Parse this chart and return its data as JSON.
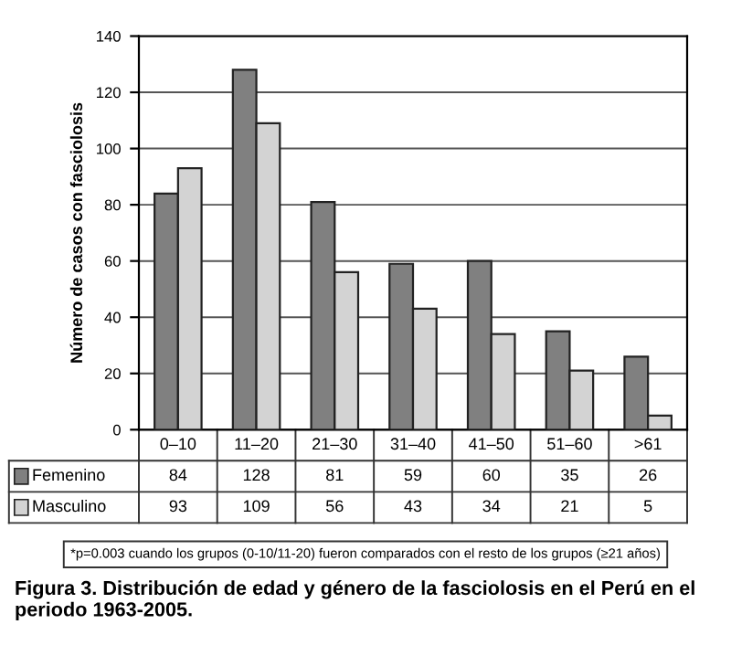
{
  "chart_data": {
    "type": "bar",
    "ylabel": "Número de casos con fasciolosis",
    "categories": [
      "0–10",
      "11–20",
      "21–30",
      "31–40",
      "41–50",
      "51–60",
      ">61"
    ],
    "series": [
      {
        "name": "Femenino",
        "color": "#808080",
        "values": [
          84,
          128,
          81,
          59,
          60,
          35,
          26
        ]
      },
      {
        "name": "Masculino",
        "color": "#d3d3d3",
        "values": [
          93,
          109,
          56,
          43,
          34,
          21,
          5
        ]
      }
    ],
    "ylim": [
      0,
      140
    ],
    "yticks": [
      0,
      20,
      40,
      60,
      80,
      100,
      120,
      140
    ],
    "grid": "y",
    "legend": "bottom",
    "data_labels": true,
    "annotations": [
      "*p=0.003 cuando los grupos (0-10/11-20) fueron comparados con el resto de los grupos (≥21 años)",
      "Figura 3. Distribución de edad y género de la fasciolosis en el Perú en el periodo 1963-2005."
    ]
  }
}
